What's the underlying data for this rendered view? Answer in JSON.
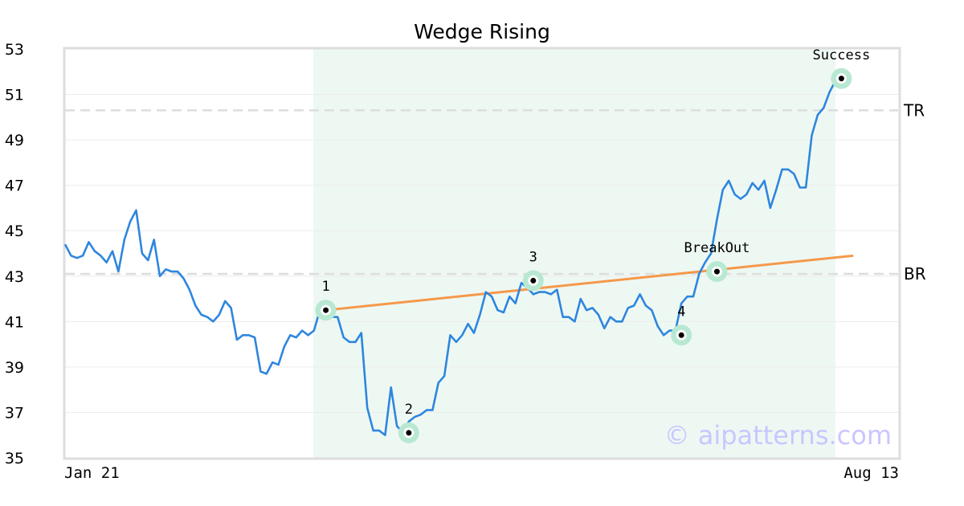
{
  "chart_data": {
    "type": "line",
    "title": "Wedge Rising",
    "x_start_label": "Jan 21",
    "x_end_label": "Aug 13",
    "ylim": [
      35,
      53
    ],
    "yticks": [
      35,
      37,
      39,
      41,
      43,
      45,
      47,
      49,
      51,
      53
    ],
    "grid": true,
    "series": [
      {
        "values": [
          44.4,
          43.9,
          43.8,
          43.9,
          44.5,
          44.1,
          43.9,
          43.6,
          44.1,
          43.2,
          44.6,
          45.4,
          45.9,
          44.0,
          43.7,
          44.6,
          43.0,
          43.3,
          43.2,
          43.2,
          42.9,
          42.4,
          41.7,
          41.3,
          41.2,
          41.0,
          41.3,
          41.9,
          41.6,
          40.2,
          40.4,
          40.4,
          40.3,
          38.8,
          38.7,
          39.2,
          39.1,
          39.9,
          40.4,
          40.3,
          40.6,
          40.4,
          40.6,
          41.5,
          41.1,
          41.2,
          41.2,
          40.3,
          40.1,
          40.1,
          40.5,
          37.2,
          36.2,
          36.2,
          36.0,
          38.1,
          36.4,
          36.1,
          36.6,
          36.8,
          36.9,
          37.1,
          37.1,
          38.3,
          38.6,
          40.4,
          40.1,
          40.4,
          40.9,
          40.5,
          41.3,
          42.3,
          42.1,
          41.5,
          41.4,
          42.1,
          41.8,
          42.7,
          42.5,
          42.2,
          42.3,
          42.3,
          42.2,
          42.4,
          41.2,
          41.2,
          41.0,
          42.0,
          41.5,
          41.6,
          41.3,
          40.7,
          41.2,
          41.0,
          41.0,
          41.6,
          41.7,
          42.2,
          41.7,
          41.5,
          40.8,
          40.4,
          40.6,
          40.6,
          41.8,
          42.1,
          42.1,
          43.1,
          43.6,
          44.0,
          45.5,
          46.8,
          47.2,
          46.6,
          46.4,
          46.6,
          47.1,
          46.8,
          47.2,
          46.0,
          46.8,
          47.7,
          47.7,
          47.5,
          46.9,
          46.9,
          49.2,
          50.1,
          50.4,
          51.1,
          51.6
        ]
      }
    ],
    "shaded_region_index": [
      42,
      134
    ],
    "trend_line": {
      "from_index": 44,
      "from_value": 41.5,
      "to_index": 133,
      "to_value": 43.9,
      "color": "#f5994a"
    },
    "levels": [
      {
        "label": "TR",
        "value": 50.3
      },
      {
        "label": "BR",
        "value": 43.1
      }
    ],
    "points": [
      {
        "label": "1",
        "index": 44,
        "value": 41.5
      },
      {
        "label": "2",
        "index": 58,
        "value": 36.1
      },
      {
        "label": "3",
        "index": 79,
        "value": 42.8
      },
      {
        "label": "4",
        "index": 104,
        "value": 40.4
      },
      {
        "label": "BreakOut",
        "index": 110,
        "value": 43.2
      },
      {
        "label": "Success",
        "index": 131,
        "value": 51.7
      }
    ],
    "colors": {
      "line": "#2e86de",
      "shade": "#eef8f3",
      "marker_halo": "#b8e8d2",
      "level_line": "#dddddd",
      "grid": "#ececec",
      "frame": "#dddddd"
    }
  },
  "watermark": "© aipatterns.com"
}
